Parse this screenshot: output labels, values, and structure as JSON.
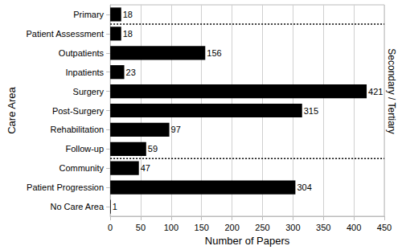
{
  "chart_data": {
    "type": "bar",
    "orientation": "horizontal",
    "x_label": "Number of Papers",
    "y_label": "Care Area",
    "categories": [
      "Primary",
      "Patient Assessment",
      "Outpatients",
      "Inpatients",
      "Surgery",
      "Post-Surgery",
      "Rehabilitation",
      "Follow-up",
      "Community",
      "Patient Progression",
      "No Care Area"
    ],
    "values": [
      18,
      18,
      156,
      23,
      421,
      315,
      97,
      59,
      47,
      304,
      1
    ],
    "color": "#000000",
    "xlim": [
      0,
      450
    ],
    "xticks": [
      0,
      50,
      100,
      150,
      200,
      250,
      300,
      350,
      400,
      450
    ],
    "grid": true,
    "data_labels": true,
    "annotations": [
      {
        "text": "Secondary / Tertiary",
        "from": "Patient Assessment",
        "to": "Follow-up"
      }
    ]
  }
}
